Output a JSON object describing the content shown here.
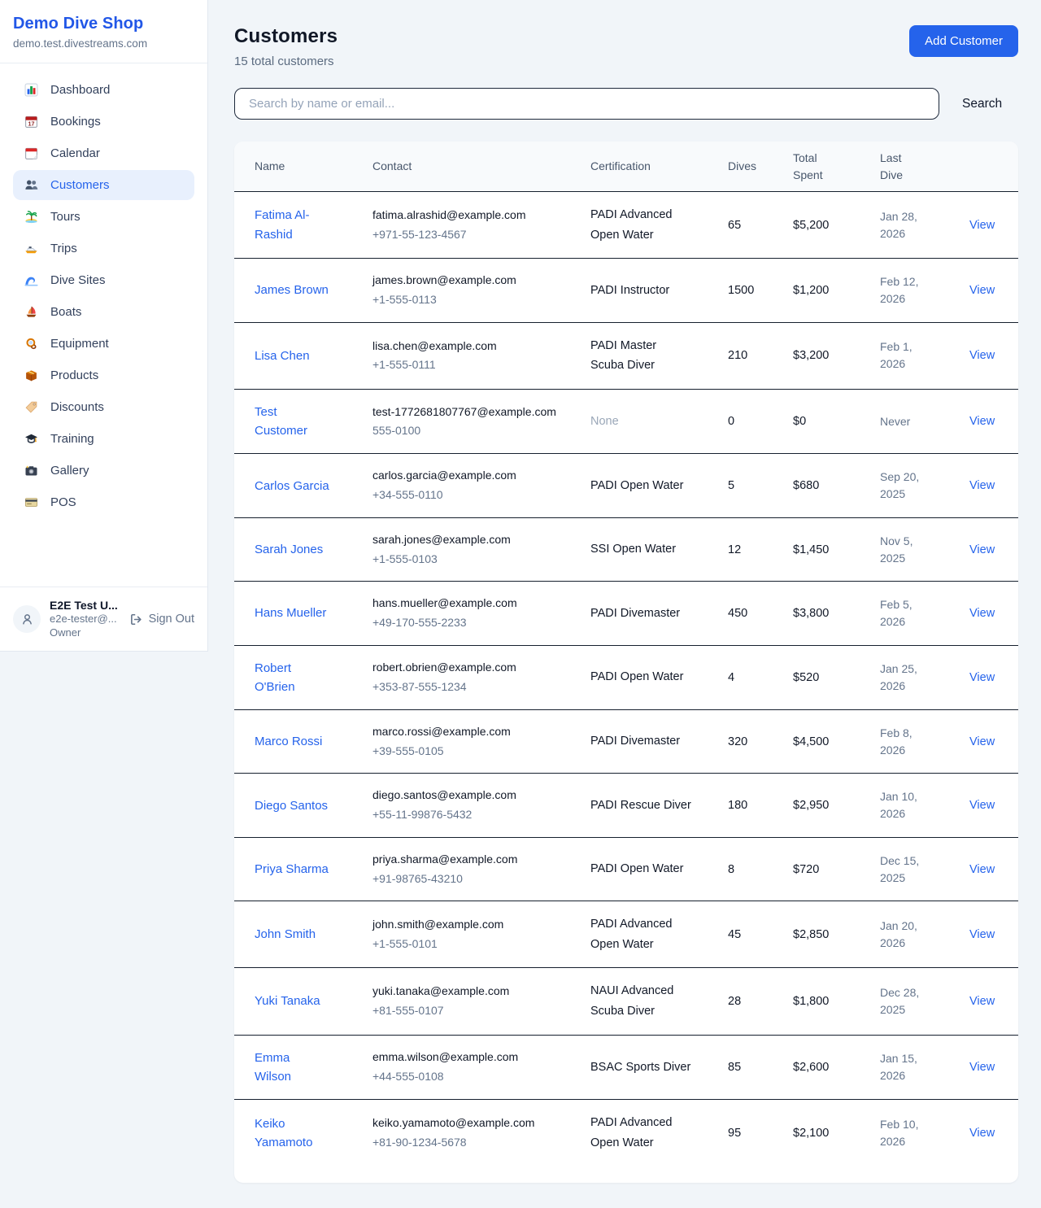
{
  "colors": {
    "accent": "#2563eb",
    "brand_text": "#2257e7",
    "page_bg": "#f1f5f9",
    "active_nav_bg": "#e8f0fd",
    "table_border": "#16202e",
    "table_header_bg": "#f8fafc",
    "muted_text": "#9aa7b8"
  },
  "sidebar": {
    "title": "Demo Dive Shop",
    "subdomain": "demo.test.divestreams.com",
    "items": [
      {
        "id": "dashboard",
        "label": "Dashboard",
        "active": false
      },
      {
        "id": "bookings",
        "label": "Bookings",
        "active": false
      },
      {
        "id": "calendar",
        "label": "Calendar",
        "active": false
      },
      {
        "id": "customers",
        "label": "Customers",
        "active": true
      },
      {
        "id": "tours",
        "label": "Tours",
        "active": false
      },
      {
        "id": "trips",
        "label": "Trips",
        "active": false
      },
      {
        "id": "dive-sites",
        "label": "Dive Sites",
        "active": false
      },
      {
        "id": "boats",
        "label": "Boats",
        "active": false
      },
      {
        "id": "equipment",
        "label": "Equipment",
        "active": false
      },
      {
        "id": "products",
        "label": "Products",
        "active": false
      },
      {
        "id": "discounts",
        "label": "Discounts",
        "active": false
      },
      {
        "id": "training",
        "label": "Training",
        "active": false
      },
      {
        "id": "gallery",
        "label": "Gallery",
        "active": false
      },
      {
        "id": "pos",
        "label": "POS",
        "active": false
      }
    ],
    "user": {
      "name": "E2E Test U...",
      "email": "e2e-tester@...",
      "role": "Owner",
      "signout_label": "Sign Out"
    }
  },
  "header": {
    "title": "Customers",
    "subtitle": "15 total customers",
    "add_button_label": "Add Customer"
  },
  "search": {
    "placeholder": "Search by name or email...",
    "button_label": "Search"
  },
  "table": {
    "columns": [
      "Name",
      "Contact",
      "Certification",
      "Dives",
      "Total Spent",
      "Last Dive"
    ],
    "rows": [
      {
        "name": "Fatima Al-Rashid",
        "email": "fatima.alrashid@example.com",
        "phone": "+971-55-123-4567",
        "certification": "PADI Advanced Open Water",
        "dives": "65",
        "total_spent": "$5,200",
        "last_dive": "Jan 28, 2026",
        "action": "View"
      },
      {
        "name": "James Brown",
        "email": "james.brown@example.com",
        "phone": "+1-555-0113",
        "certification": "PADI Instructor",
        "dives": "1500",
        "total_spent": "$1,200",
        "last_dive": "Feb 12, 2026",
        "action": "View"
      },
      {
        "name": "Lisa Chen",
        "email": "lisa.chen@example.com",
        "phone": "+1-555-0111",
        "certification": "PADI Master Scuba Diver",
        "dives": "210",
        "total_spent": "$3,200",
        "last_dive": "Feb 1, 2026",
        "action": "View"
      },
      {
        "name": "Test Customer",
        "email": "test-1772681807767@example.com",
        "phone": "555-0100",
        "certification": "None",
        "dives": "0",
        "total_spent": "$0",
        "last_dive": "Never",
        "action": "View"
      },
      {
        "name": "Carlos Garcia",
        "email": "carlos.garcia@example.com",
        "phone": "+34-555-0110",
        "certification": "PADI Open Water",
        "dives": "5",
        "total_spent": "$680",
        "last_dive": "Sep 20, 2025",
        "action": "View"
      },
      {
        "name": "Sarah Jones",
        "email": "sarah.jones@example.com",
        "phone": "+1-555-0103",
        "certification": "SSI Open Water",
        "dives": "12",
        "total_spent": "$1,450",
        "last_dive": "Nov 5, 2025",
        "action": "View"
      },
      {
        "name": "Hans Mueller",
        "email": "hans.mueller@example.com",
        "phone": "+49-170-555-2233",
        "certification": "PADI Divemaster",
        "dives": "450",
        "total_spent": "$3,800",
        "last_dive": "Feb 5, 2026",
        "action": "View"
      },
      {
        "name": "Robert O'Brien",
        "email": "robert.obrien@example.com",
        "phone": "+353-87-555-1234",
        "certification": "PADI Open Water",
        "dives": "4",
        "total_spent": "$520",
        "last_dive": "Jan 25, 2026",
        "action": "View"
      },
      {
        "name": "Marco Rossi",
        "email": "marco.rossi@example.com",
        "phone": "+39-555-0105",
        "certification": "PADI Divemaster",
        "dives": "320",
        "total_spent": "$4,500",
        "last_dive": "Feb 8, 2026",
        "action": "View"
      },
      {
        "name": "Diego Santos",
        "email": "diego.santos@example.com",
        "phone": "+55-11-99876-5432",
        "certification": "PADI Rescue Diver",
        "dives": "180",
        "total_spent": "$2,950",
        "last_dive": "Jan 10, 2026",
        "action": "View"
      },
      {
        "name": "Priya Sharma",
        "email": "priya.sharma@example.com",
        "phone": "+91-98765-43210",
        "certification": "PADI Open Water",
        "dives": "8",
        "total_spent": "$720",
        "last_dive": "Dec 15, 2025",
        "action": "View"
      },
      {
        "name": "John Smith",
        "email": "john.smith@example.com",
        "phone": "+1-555-0101",
        "certification": "PADI Advanced Open Water",
        "dives": "45",
        "total_spent": "$2,850",
        "last_dive": "Jan 20, 2026",
        "action": "View"
      },
      {
        "name": "Yuki Tanaka",
        "email": "yuki.tanaka@example.com",
        "phone": "+81-555-0107",
        "certification": "NAUI Advanced Scuba Diver",
        "dives": "28",
        "total_spent": "$1,800",
        "last_dive": "Dec 28, 2025",
        "action": "View"
      },
      {
        "name": "Emma Wilson",
        "email": "emma.wilson@example.com",
        "phone": "+44-555-0108",
        "certification": "BSAC Sports Diver",
        "dives": "85",
        "total_spent": "$2,600",
        "last_dive": "Jan 15, 2026",
        "action": "View"
      },
      {
        "name": "Keiko Yamamoto",
        "email": "keiko.yamamoto@example.com",
        "phone": "+81-90-1234-5678",
        "certification": "PADI Advanced Open Water",
        "dives": "95",
        "total_spent": "$2,100",
        "last_dive": "Feb 10, 2026",
        "action": "View"
      }
    ]
  }
}
